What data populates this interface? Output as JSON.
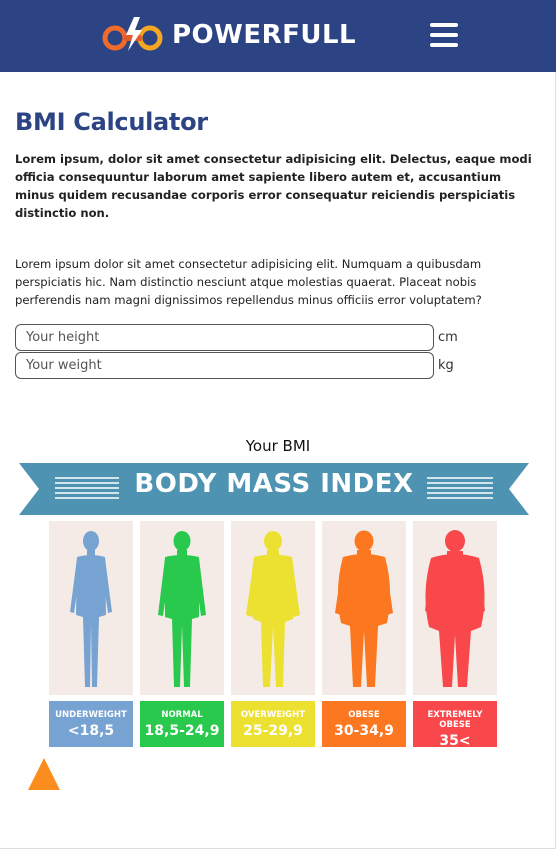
{
  "header": {
    "brand": "POWERFULL",
    "logo_icon": "logo-icon",
    "menu_icon": "hamburger-menu-icon",
    "color": "#2c4484"
  },
  "main": {
    "title": "BMI Calculator",
    "paragraph1": "Lorem ipsum, dolor sit amet consectetur adipisicing elit. Delectus, eaque modi officia consequuntur laborum amet sapiente libero autem et, accusantium minus quidem recusandae corporis error consequatur reiciendis perspiciatis distinctio non.",
    "paragraph2": "Lorem ipsum dolor sit amet consectetur adipisicing elit. Numquam a quibusdam perspiciatis hic. Nam distinctio nesciunt atque molestias quaerat. Placeat nobis perferendis nam magni dignissimos repellendus minus officiis error voluptatem?",
    "height_field": {
      "placeholder": "Your height",
      "unit": "cm",
      "value": ""
    },
    "weight_field": {
      "placeholder": "Your weight",
      "unit": "kg",
      "value": ""
    },
    "bmi_label": "Your BMI",
    "bmi_value": ""
  },
  "chart": {
    "banner": "BODY MASS INDEX",
    "banner_color": "#4e93b1",
    "categories": [
      {
        "name": "UNDERWEIGHT",
        "range": "<18,5",
        "color": "#77a3d2"
      },
      {
        "name": "NORMAL",
        "range": "18,5-24,9",
        "color": "#28c94c"
      },
      {
        "name": "OVERWEIGHT",
        "range": "25-29,9",
        "color": "#ece131"
      },
      {
        "name": "OBESE",
        "range": "30-34,9",
        "color": "#fb7720"
      },
      {
        "name": "EXTREMELY OBESE",
        "range": "35<",
        "color": "#f8484b"
      }
    ]
  },
  "indicator": {
    "icon": "triangle-pointer-icon",
    "color": "#fb8c1e"
  }
}
